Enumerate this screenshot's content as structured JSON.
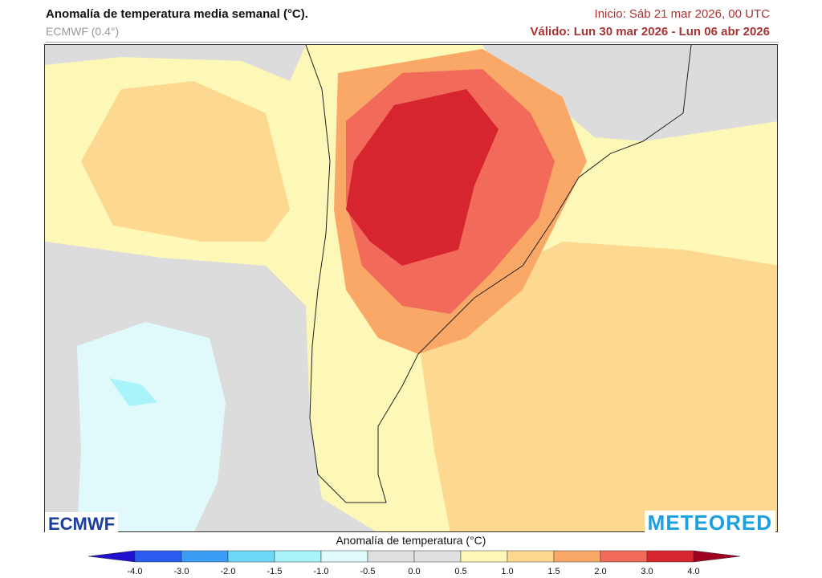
{
  "header": {
    "title": "Anomalía de temperatura media semanal (°C).",
    "model": "ECMWF (0.4°)",
    "init": "Inicio: Sáb 21 mar 2026, 00 UTC",
    "valid": "Válido: Lun 30 mar 2026 - Lun 06 abr 2026"
  },
  "logos": {
    "left": "ECMWF",
    "right": "METEORED"
  },
  "colorbar": {
    "title": "Anomalía de temperatura (°C)",
    "ticks": [
      "-4.0",
      "-3.0",
      "-2.0",
      "-1.5",
      "-1.0",
      "-0.5",
      "0.0",
      "0.5",
      "1.0",
      "1.5",
      "2.0",
      "3.0",
      "4.0"
    ],
    "colors": [
      "#2a5cf0",
      "#3a9cf5",
      "#6ed8f8",
      "#a8f4fa",
      "#e0fafc",
      "#e0e0e0",
      "#e0e0e0",
      "#fdf7b8",
      "#fcd890",
      "#f9a868",
      "#f26a5a",
      "#d72530"
    ],
    "under": "#2010d0",
    "over": "#a00020"
  }
}
